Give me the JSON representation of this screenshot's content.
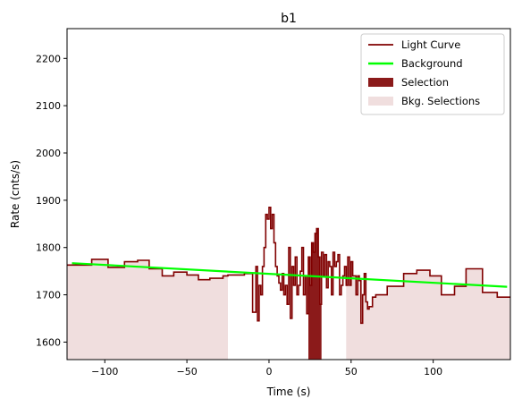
{
  "chart_data": {
    "type": "line",
    "title": "b1",
    "xlabel": "Time (s)",
    "ylabel": "Rate (cnts/s)",
    "xlim": [
      -123,
      147
    ],
    "ylim": [
      1563,
      2263
    ],
    "x_ticks": [
      -100,
      -50,
      0,
      50,
      100
    ],
    "y_ticks": [
      1600,
      1700,
      1800,
      1900,
      2000,
      2100,
      2200
    ],
    "legend_position": "top-right",
    "legend": [
      {
        "label": "Light Curve",
        "kind": "line",
        "color": "#800000"
      },
      {
        "label": "Background",
        "kind": "line",
        "color": "#00ff00"
      },
      {
        "label": "Selection",
        "kind": "patch",
        "color": "#8b1a1a"
      },
      {
        "label": "Bkg. Selections",
        "kind": "patch",
        "color": "#f0dede"
      }
    ],
    "series": [
      {
        "name": "Light Curve",
        "style": "step",
        "color": "#800000",
        "x": [
          -123,
          -108,
          -98,
          -88,
          -80,
          -73,
          -65,
          -58,
          -50,
          -43,
          -36,
          -28,
          -25,
          -15,
          -10,
          -8,
          -7,
          -6,
          -5,
          -4,
          -3,
          -2,
          -1,
          0,
          1,
          2,
          3,
          4,
          5,
          6,
          7,
          8,
          9,
          10,
          11,
          12,
          13,
          14,
          15,
          16,
          17,
          18,
          19,
          20,
          21,
          22,
          23,
          24,
          25,
          26,
          27,
          28,
          29,
          30,
          31,
          32,
          33,
          34,
          35,
          36,
          37,
          38,
          39,
          40,
          41,
          42,
          43,
          44,
          45,
          46,
          47,
          48,
          49,
          50,
          51,
          52,
          53,
          54,
          55,
          56,
          57,
          58,
          59,
          60,
          61,
          63,
          65,
          72,
          82,
          90,
          98,
          105,
          113,
          120,
          130,
          139,
          147
        ],
        "y": [
          1763,
          1775,
          1758,
          1770,
          1773,
          1755,
          1740,
          1748,
          1742,
          1732,
          1735,
          1740,
          1742,
          1745,
          1663,
          1760,
          1645,
          1720,
          1700,
          1760,
          1800,
          1870,
          1860,
          1885,
          1840,
          1870,
          1810,
          1760,
          1740,
          1725,
          1710,
          1745,
          1700,
          1720,
          1680,
          1800,
          1650,
          1760,
          1720,
          1780,
          1700,
          1720,
          1750,
          1800,
          1700,
          1740,
          1660,
          1780,
          1720,
          1810,
          1790,
          1830,
          1840,
          1780,
          1680,
          1790,
          1740,
          1785,
          1715,
          1770,
          1760,
          1700,
          1790,
          1760,
          1770,
          1785,
          1700,
          1720,
          1740,
          1760,
          1720,
          1780,
          1720,
          1770,
          1740,
          1740,
          1700,
          1740,
          1730,
          1640,
          1700,
          1745,
          1685,
          1670,
          1675,
          1695,
          1700,
          1718,
          1745,
          1752,
          1740,
          1700,
          1718,
          1755,
          1705,
          1695,
          1695
        ]
      },
      {
        "name": "Background",
        "style": "line",
        "color": "#00ff00",
        "x": [
          -120,
          145
        ],
        "y": [
          1767,
          1717
        ]
      }
    ],
    "selection": {
      "color": "#8b1a1a",
      "x_range": [
        24,
        32
      ]
    },
    "background_selections": {
      "color": "#f0dede",
      "ranges": [
        [
          -123,
          -25
        ],
        [
          47,
          147
        ]
      ]
    }
  }
}
